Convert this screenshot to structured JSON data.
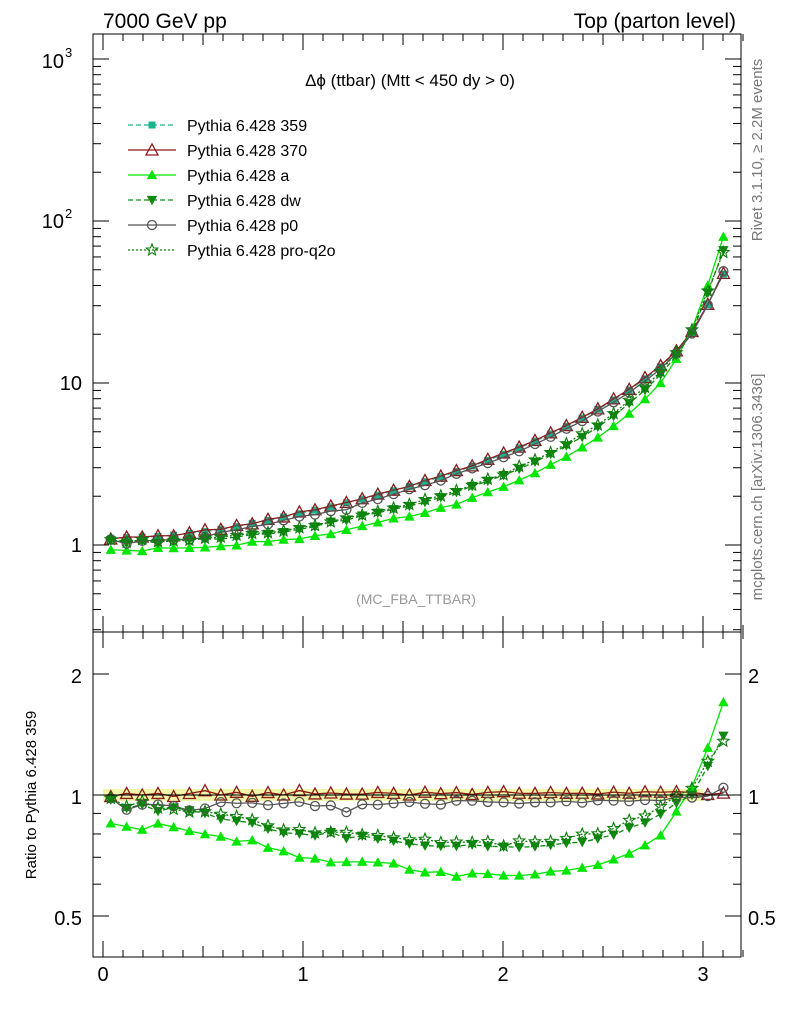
{
  "header": {
    "left": "7000 GeV pp",
    "right": "Top (parton level)"
  },
  "side": {
    "rivet": "Rivet 3.1.10, ≥ 2.2M events",
    "mcplots": "mcplots.cern.ch [arXiv:1306.3436]"
  },
  "chart_data": {
    "type": "line",
    "title": "Δϕ (ttbar) (Mtt < 450 dy > 0)",
    "watermark": "(MC_FBA_TTBAR)",
    "xlabel": "",
    "ylabel": "",
    "ratio_ylabel": "Ratio to Pythia 6.428 359",
    "xlim": [
      -0.05,
      3.2
    ],
    "ylim": [
      0.28,
      1300
    ],
    "yscale": "log",
    "ratio_ylim": [
      0.42,
      2.35
    ],
    "x_ticks": [
      "0",
      "1",
      "2",
      "3"
    ],
    "y_ticks": [
      "1",
      "10",
      "10^2",
      "10^3"
    ],
    "ratio_ticks": [
      "0.5",
      "1",
      "2"
    ],
    "legend_position": "top-left",
    "x": [
      0.039,
      0.118,
      0.196,
      0.275,
      0.353,
      0.432,
      0.51,
      0.589,
      0.668,
      0.746,
      0.825,
      0.903,
      0.982,
      1.06,
      1.139,
      1.217,
      1.296,
      1.374,
      1.453,
      1.532,
      1.61,
      1.689,
      1.767,
      1.846,
      1.924,
      2.003,
      2.081,
      2.16,
      2.238,
      2.317,
      2.396,
      2.474,
      2.553,
      2.631,
      2.71,
      2.788,
      2.867,
      2.945,
      3.024,
      3.102
    ],
    "series": [
      {
        "name": "Pythia 6.428 359",
        "color": "#19b38c",
        "marker": "square",
        "dash": "5,3",
        "values": [
          1.1,
          1.11,
          1.12,
          1.13,
          1.15,
          1.18,
          1.21,
          1.25,
          1.3,
          1.36,
          1.42,
          1.49,
          1.56,
          1.64,
          1.72,
          1.82,
          1.92,
          2.03,
          2.16,
          2.3,
          2.46,
          2.64,
          2.84,
          3.07,
          3.33,
          3.63,
          3.98,
          4.38,
          4.85,
          5.41,
          6.08,
          6.88,
          7.85,
          9.05,
          10.6,
          12.6,
          15.5,
          20.5,
          30.5,
          47.0
        ]
      },
      {
        "name": "Pythia 6.428 370",
        "color": "#8b1a1a",
        "marker": "triangle-open",
        "dash": "",
        "values": [
          1.09,
          1.12,
          1.12,
          1.14,
          1.14,
          1.19,
          1.24,
          1.25,
          1.32,
          1.35,
          1.44,
          1.49,
          1.6,
          1.65,
          1.74,
          1.83,
          1.93,
          2.06,
          2.18,
          2.3,
          2.5,
          2.66,
          2.88,
          3.08,
          3.38,
          3.7,
          4.02,
          4.42,
          4.92,
          5.46,
          6.14,
          6.92,
          7.98,
          9.14,
          10.8,
          12.8,
          15.8,
          20.8,
          30.6,
          47.5
        ]
      },
      {
        "name": "Pythia 6.428 a",
        "color": "#00e600",
        "marker": "triangle",
        "dash": "",
        "values": [
          0.935,
          0.926,
          0.918,
          0.96,
          0.957,
          0.96,
          0.967,
          0.985,
          0.996,
          1.05,
          1.05,
          1.08,
          1.09,
          1.14,
          1.17,
          1.24,
          1.31,
          1.38,
          1.46,
          1.5,
          1.58,
          1.7,
          1.78,
          1.96,
          2.12,
          2.29,
          2.51,
          2.78,
          3.13,
          3.51,
          4.01,
          4.61,
          5.43,
          6.47,
          7.95,
          10.0,
          14.1,
          21.5,
          40.0,
          80.0
        ]
      },
      {
        "name": "Pythia 6.428 dw",
        "color": "#0e8a0e",
        "marker": "triangle-down",
        "dash": "5,3",
        "values": [
          1.07,
          1.03,
          1.06,
          1.03,
          1.07,
          1.08,
          1.09,
          1.09,
          1.12,
          1.16,
          1.17,
          1.2,
          1.25,
          1.3,
          1.39,
          1.42,
          1.52,
          1.58,
          1.66,
          1.74,
          1.84,
          1.97,
          2.12,
          2.31,
          2.48,
          2.7,
          2.95,
          3.26,
          3.64,
          4.11,
          4.64,
          5.36,
          6.25,
          7.5,
          9.05,
          11.3,
          14.8,
          20.5,
          36.0,
          66.0
        ]
      },
      {
        "name": "Pythia 6.428 p0",
        "color": "#555555",
        "marker": "circle-open",
        "dash": "",
        "values": [
          1.08,
          1.02,
          1.06,
          1.07,
          1.08,
          1.08,
          1.12,
          1.2,
          1.24,
          1.3,
          1.34,
          1.42,
          1.5,
          1.54,
          1.62,
          1.65,
          1.82,
          1.92,
          2.06,
          2.21,
          2.34,
          2.5,
          2.75,
          2.97,
          3.2,
          3.48,
          3.79,
          4.2,
          4.65,
          5.22,
          5.82,
          6.67,
          7.6,
          8.73,
          10.3,
          12.2,
          15.3,
          20.2,
          30.3,
          49.0
        ]
      },
      {
        "name": "Pythia 6.428 pro-q2o",
        "color": "#0a7d0a",
        "marker": "star",
        "dash": "2,2",
        "values": [
          1.08,
          1.04,
          1.08,
          1.05,
          1.06,
          1.07,
          1.1,
          1.12,
          1.15,
          1.18,
          1.19,
          1.22,
          1.28,
          1.32,
          1.39,
          1.47,
          1.53,
          1.61,
          1.69,
          1.78,
          1.91,
          2.01,
          2.17,
          2.34,
          2.55,
          2.71,
          3.06,
          3.35,
          3.72,
          4.22,
          4.86,
          5.51,
          6.48,
          7.83,
          9.4,
          11.8,
          15.4,
          21.3,
          37.0,
          64.0
        ]
      }
    ]
  }
}
